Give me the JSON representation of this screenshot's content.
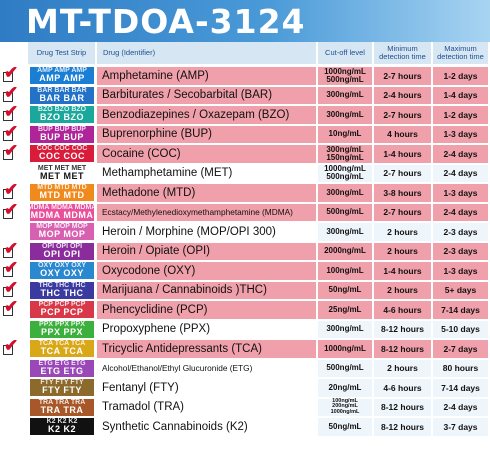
{
  "title": "MT-TDOA-3124",
  "headers": {
    "strip": "Drug Test Strip",
    "drug": "Drug (Identifier)",
    "cutoff": "Cut-off level",
    "min": "Minimum detection time",
    "max": "Maximum detection time"
  },
  "colors": {
    "accent_pink": "#f0a0aa",
    "header_blue": "#d6e6f3",
    "check_red": "#d0102c"
  },
  "rows": [
    {
      "strip": "AMP",
      "strip_color": "#1a7fd4",
      "name": "Amphetamine (AMP)",
      "cutoff": [
        "1000ng/mL",
        "500ng/mL"
      ],
      "min": "2-7 hours",
      "max": "1-2 days",
      "checked": true
    },
    {
      "strip": "BAR",
      "strip_color": "#2472c8",
      "name": "Barbiturates / Secobarbital (BAR)",
      "cutoff": [
        "300ng/mL"
      ],
      "min": "2-4 hours",
      "max": "1-4 days",
      "checked": true
    },
    {
      "strip": "BZO",
      "strip_color": "#1aa89c",
      "name": "Benzodiazepines / Oxazepam (BZO)",
      "cutoff": [
        "300ng/mL"
      ],
      "min": "2-7 hours",
      "max": "1-2 days",
      "checked": true
    },
    {
      "strip": "BUP",
      "strip_color": "#b0249a",
      "name": "Buprenorphine (BUP)",
      "cutoff": [
        "10ng/mL"
      ],
      "min": "4 hours",
      "max": "1-3 days",
      "checked": true
    },
    {
      "strip": "COC",
      "strip_color": "#d81c3a",
      "name": "Cocaine (COC)",
      "cutoff": [
        "300ng/mL",
        "150ng/mL"
      ],
      "min": "1-4 hours",
      "max": "2-4 days",
      "checked": true
    },
    {
      "strip": "MET",
      "strip_color": "#ffffff",
      "name": "Methamphetamine (MET)",
      "cutoff": [
        "1000ng/mL",
        "500ng/mL"
      ],
      "min": "2-7 hours",
      "max": "2-4 days",
      "checked": false
    },
    {
      "strip": "MTD",
      "strip_color": "#f08a1c",
      "name": "Methadone (MTD)",
      "cutoff": [
        "300ng/mL"
      ],
      "min": "3-8 hours",
      "max": "1-3 days",
      "checked": true
    },
    {
      "strip": "MDMA",
      "strip_color": "#e8509c",
      "name": "Ecstacy/Methylenedioxymethamphetamine (MDMA)",
      "cutoff": [
        "500ng/mL"
      ],
      "min": "2-7 hours",
      "max": "2-4 days",
      "checked": true
    },
    {
      "strip": "MOP",
      "strip_color": "#d860b0",
      "name": "Heroin / Morphine (MOP/OPI 300)",
      "cutoff": [
        "300ng/mL"
      ],
      "min": "2 hours",
      "max": "2-3 days",
      "checked": false
    },
    {
      "strip": "OPI",
      "strip_color": "#8a2c9c",
      "name": "Heroin / Opiate (OPI)",
      "cutoff": [
        "2000ng/mL"
      ],
      "min": "2 hours",
      "max": "2-3 days",
      "checked": true
    },
    {
      "strip": "OXY",
      "strip_color": "#2a88d0",
      "name": "Oxycodone (OXY)",
      "cutoff": [
        "100ng/mL"
      ],
      "min": "1-4 hours",
      "max": "1-3 days",
      "checked": true
    },
    {
      "strip": "THC",
      "strip_color": "#3a3aa0",
      "name": "Marijuana / Cannabinoids )THC)",
      "cutoff": [
        "50ng/mL"
      ],
      "min": "2 hours",
      "max": "5+ days",
      "checked": true
    },
    {
      "strip": "PCP",
      "strip_color": "#d83848",
      "name": "Phencyclidine (PCP)",
      "cutoff": [
        "25ng/mL"
      ],
      "min": "4-6 hours",
      "max": "7-14 days",
      "checked": true
    },
    {
      "strip": "PPX",
      "strip_color": "#3cb03c",
      "name": "Propoxyphene (PPX)",
      "cutoff": [
        "300ng/mL"
      ],
      "min": "8-12 hours",
      "max": "5-10 days",
      "checked": false
    },
    {
      "strip": "TCA",
      "strip_color": "#d8a818",
      "name": "Tricyclic Antidepressants (TCA)",
      "cutoff": [
        "1000ng/mL"
      ],
      "min": "8-12 hours",
      "max": "2-7 days",
      "checked": true
    },
    {
      "strip": "ETG",
      "strip_color": "#9a48b8",
      "name": "Alcohol/Ethanol/Ethyl Glucuronide (ETG)",
      "cutoff": [
        "500ng/mL"
      ],
      "min": "2 hours",
      "max": "80 hours",
      "checked": false
    },
    {
      "strip": "FTY",
      "strip_color": "#8c6a2c",
      "name": "Fentanyl (FTY)",
      "cutoff": [
        "20ng/mL"
      ],
      "min": "4-6 hours",
      "max": "7-14 days",
      "checked": false
    },
    {
      "strip": "TRA",
      "strip_color": "#a85828",
      "name": "Tramadol (TRA)",
      "cutoff": [
        "100ng/mL",
        "200ng/mL",
        "1000ng/mL"
      ],
      "min": "8-12 hours",
      "max": "2-4 days",
      "checked": false
    },
    {
      "strip": "K2",
      "strip_color": "#111111",
      "name": "Synthetic Cannabinoids (K2)",
      "cutoff": [
        "50ng/mL"
      ],
      "min": "8-12 hours",
      "max": "3-7 days",
      "checked": false
    }
  ]
}
